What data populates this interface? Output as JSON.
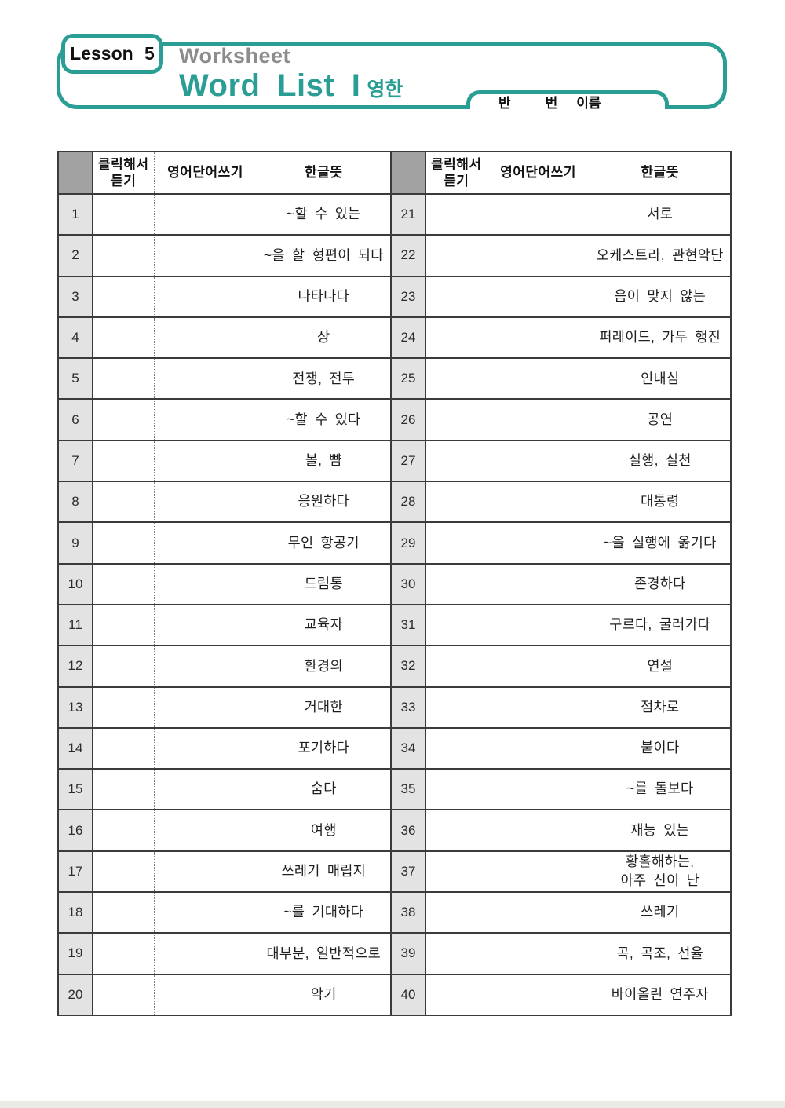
{
  "accent_color": "#2a9e94",
  "header": {
    "lesson_label": "Lesson 5",
    "subtitle": "Worksheet",
    "title": "Word List I",
    "title_suffix": "영한",
    "name_fields": {
      "class": "반",
      "number": "번",
      "name": "이름"
    }
  },
  "table_headers": {
    "listen": "클릭해서\n듣기",
    "english": "영어단어쓰기",
    "meaning": "한글뜻"
  },
  "tables": [
    {
      "rows": [
        {
          "num": "1",
          "meaning": "~할 수 있는"
        },
        {
          "num": "2",
          "meaning": "~을 할 형편이 되다"
        },
        {
          "num": "3",
          "meaning": "나타나다"
        },
        {
          "num": "4",
          "meaning": "상"
        },
        {
          "num": "5",
          "meaning": "전쟁, 전투"
        },
        {
          "num": "6",
          "meaning": "~할 수 있다"
        },
        {
          "num": "7",
          "meaning": "볼, 뺨"
        },
        {
          "num": "8",
          "meaning": "응원하다"
        },
        {
          "num": "9",
          "meaning": "무인 항공기"
        },
        {
          "num": "10",
          "meaning": "드럼통"
        },
        {
          "num": "11",
          "meaning": "교육자"
        },
        {
          "num": "12",
          "meaning": "환경의"
        },
        {
          "num": "13",
          "meaning": "거대한"
        },
        {
          "num": "14",
          "meaning": "포기하다"
        },
        {
          "num": "15",
          "meaning": "숨다"
        },
        {
          "num": "16",
          "meaning": "여행"
        },
        {
          "num": "17",
          "meaning": "쓰레기 매립지"
        },
        {
          "num": "18",
          "meaning": "~를 기대하다"
        },
        {
          "num": "19",
          "meaning": "대부분, 일반적으로"
        },
        {
          "num": "20",
          "meaning": "악기"
        }
      ]
    },
    {
      "rows": [
        {
          "num": "21",
          "meaning": "서로"
        },
        {
          "num": "22",
          "meaning": "오케스트라, 관현악단"
        },
        {
          "num": "23",
          "meaning": "음이 맞지 않는"
        },
        {
          "num": "24",
          "meaning": "퍼레이드, 가두 행진"
        },
        {
          "num": "25",
          "meaning": "인내심"
        },
        {
          "num": "26",
          "meaning": "공연"
        },
        {
          "num": "27",
          "meaning": "실행, 실천"
        },
        {
          "num": "28",
          "meaning": "대통령"
        },
        {
          "num": "29",
          "meaning": "~을 실행에 옮기다"
        },
        {
          "num": "30",
          "meaning": "존경하다"
        },
        {
          "num": "31",
          "meaning": "구르다, 굴러가다"
        },
        {
          "num": "32",
          "meaning": "연설"
        },
        {
          "num": "33",
          "meaning": "점차로"
        },
        {
          "num": "34",
          "meaning": "붙이다"
        },
        {
          "num": "35",
          "meaning": "~를 돌보다"
        },
        {
          "num": "36",
          "meaning": "재능 있는"
        },
        {
          "num": "37",
          "meaning": "황홀해하는,\n아주 신이 난"
        },
        {
          "num": "38",
          "meaning": "쓰레기"
        },
        {
          "num": "39",
          "meaning": "곡, 곡조, 선율"
        },
        {
          "num": "40",
          "meaning": "바이올린 연주자"
        }
      ]
    }
  ]
}
